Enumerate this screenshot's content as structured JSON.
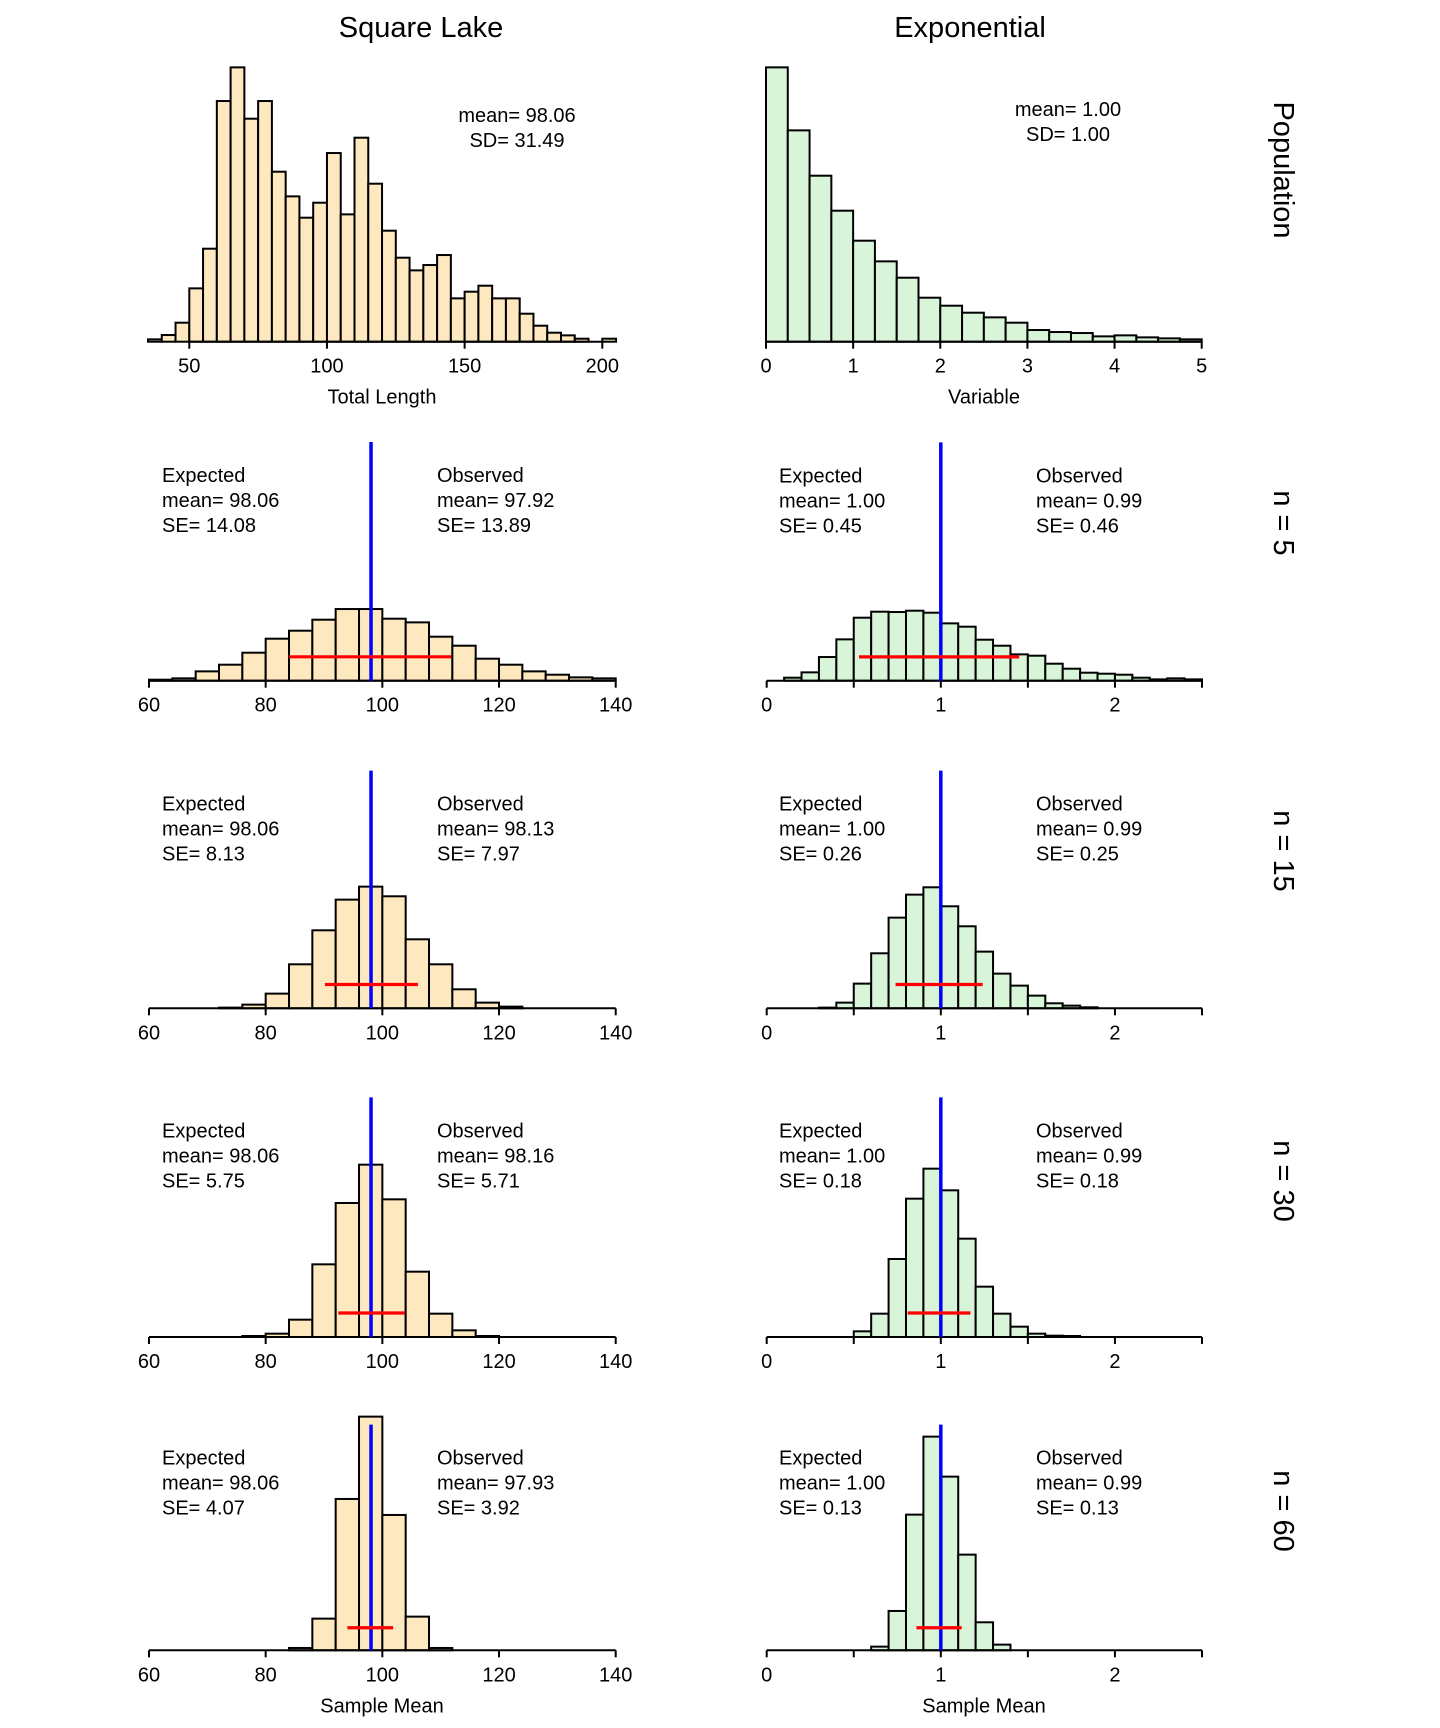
{
  "column_titles": [
    "Square Lake",
    "Exponential"
  ],
  "row_labels": [
    "Population",
    "n = 5",
    "n = 15",
    "n = 30",
    "n = 60"
  ],
  "colors": {
    "square_lake_fill": "#FEE8C0",
    "exponential_fill": "#D9F5D9",
    "expected_mean_line": "#0000FF",
    "observed_se_bar": "#FF0000",
    "outline": "#000000"
  },
  "chart_data": [
    {
      "type": "bar",
      "histogram": true,
      "column": "Square Lake",
      "row": "Population",
      "bins_start": 35,
      "bin_width": 5,
      "counts": [
        7,
        20,
        57,
        160,
        279,
        722,
        823,
        669,
        722,
        510,
        436,
        372,
        417,
        566,
        382,
        612,
        474,
        333,
        252,
        214,
        230,
        260,
        130,
        150,
        168,
        130,
        130,
        84,
        48,
        27,
        19,
        9,
        0,
        9
      ],
      "ylim": [
        0,
        823
      ],
      "xticks": [
        50,
        100,
        150,
        200
      ],
      "xtick_labels": [
        "50",
        "100",
        "150",
        "200"
      ],
      "xlabel": "Total Length",
      "stats_text": [
        "mean= 98.06",
        "SD= 31.49"
      ]
    },
    {
      "type": "bar",
      "histogram": true,
      "column": "Exponential",
      "row": "Population",
      "bins_start": 0,
      "bin_width": 0.25,
      "counts": [
        823,
        634,
        498,
        393,
        303,
        241,
        192,
        132,
        108,
        87,
        73,
        57,
        35,
        29,
        26,
        16,
        19,
        13,
        10,
        7
      ],
      "ylim": [
        0,
        823
      ],
      "xticks": [
        0,
        1,
        2,
        3,
        4,
        5
      ],
      "xtick_labels": [
        "0",
        "1",
        "2",
        "3",
        "4",
        "5"
      ],
      "xlabel": "Variable",
      "stats_text": [
        "mean= 1.00",
        "SD= 1.00"
      ]
    },
    {
      "type": "bar",
      "histogram": true,
      "column": "Square Lake",
      "row": "n = 5",
      "bins_start": 60,
      "bin_width": 4,
      "counts": [
        3,
        7,
        28,
        48,
        84,
        126,
        150,
        183,
        215,
        215,
        186,
        175,
        132,
        105,
        66,
        48,
        28,
        18,
        10,
        7
      ],
      "ylim": [
        0,
        716
      ],
      "xlim": [
        60,
        140
      ],
      "xticks": [
        60,
        80,
        100,
        120,
        140
      ],
      "xtick_labels": [
        "60",
        "80",
        "100",
        "120",
        "140"
      ],
      "xlabel": "",
      "expected": {
        "mean": 98.06,
        "se": 14.08
      },
      "observed": {
        "mean": 97.92,
        "se": 13.89
      },
      "expected_text": [
        "Expected",
        "mean= 98.06",
        "SE= 14.08"
      ],
      "observed_text": [
        "Observed",
        "mean= 97.92",
        "SE= 13.89"
      ]
    },
    {
      "type": "bar",
      "histogram": true,
      "column": "Exponential",
      "row": "n = 5",
      "bins_start": 0,
      "bin_width": 0.1,
      "counts": [
        0,
        9,
        25,
        71,
        124,
        189,
        207,
        206,
        210,
        204,
        172,
        162,
        123,
        105,
        79,
        75,
        51,
        36,
        24,
        21,
        18,
        9,
        4,
        7,
        4
      ],
      "ylim": [
        0,
        715
      ],
      "xlim": [
        0,
        2.5
      ],
      "xticks": [
        0,
        0.5,
        1,
        1.5,
        2,
        2.5
      ],
      "xtick_labels": [
        "0",
        "",
        "1",
        "",
        "2",
        ""
      ],
      "xlabel": "",
      "expected": {
        "mean": 1.0,
        "se": 0.45
      },
      "observed": {
        "mean": 0.99,
        "se": 0.46
      },
      "expected_text": [
        "Expected",
        "mean= 1.00",
        "SE= 0.45"
      ],
      "observed_text": [
        "Observed",
        "mean= 0.99",
        "SE= 0.46"
      ]
    },
    {
      "type": "bar",
      "histogram": true,
      "column": "Square Lake",
      "row": "n = 15",
      "bins_start": 72,
      "bin_width": 4,
      "counts": [
        2,
        11,
        44,
        132,
        234,
        326,
        365,
        336,
        207,
        132,
        57,
        17,
        5
      ],
      "ylim": [
        0,
        713
      ],
      "xlim": [
        60,
        140
      ],
      "xticks": [
        60,
        80,
        100,
        120,
        140
      ],
      "xtick_labels": [
        "60",
        "80",
        "100",
        "120",
        "140"
      ],
      "xlabel": "",
      "expected": {
        "mean": 98.06,
        "se": 8.13
      },
      "observed": {
        "mean": 98.13,
        "se": 7.97
      },
      "expected_text": [
        "Expected",
        "mean= 98.06",
        "SE= 8.13"
      ],
      "observed_text": [
        "Observed",
        "mean= 98.13",
        "SE= 7.97"
      ]
    },
    {
      "type": "bar",
      "histogram": true,
      "column": "Exponential",
      "row": "n = 15",
      "bins_start": 0.3,
      "bin_width": 0.1,
      "counts": [
        2,
        17,
        74,
        165,
        272,
        341,
        363,
        306,
        246,
        170,
        104,
        68,
        38,
        15,
        8,
        3
      ],
      "ylim": [
        0,
        713
      ],
      "xlim": [
        0,
        2.5
      ],
      "xticks": [
        0,
        0.5,
        1,
        1.5,
        2,
        2.5
      ],
      "xtick_labels": [
        "0",
        "",
        "1",
        "",
        "2",
        ""
      ],
      "xlabel": "",
      "expected": {
        "mean": 1.0,
        "se": 0.26
      },
      "observed": {
        "mean": 0.99,
        "se": 0.25
      },
      "expected_text": [
        "Expected",
        "mean= 1.00",
        "SE= 0.26"
      ],
      "observed_text": [
        "Observed",
        "mean= 0.99",
        "SE= 0.25"
      ]
    },
    {
      "type": "bar",
      "histogram": true,
      "column": "Square Lake",
      "row": "n = 30",
      "bins_start": 76,
      "bin_width": 4,
      "counts": [
        3,
        10,
        52,
        218,
        402,
        517,
        413,
        196,
        70,
        20,
        3
      ],
      "ylim": [
        0,
        719
      ],
      "xlim": [
        60,
        140
      ],
      "xticks": [
        60,
        80,
        100,
        120,
        140
      ],
      "xtick_labels": [
        "60",
        "80",
        "100",
        "120",
        "140"
      ],
      "xlabel": "",
      "expected": {
        "mean": 98.06,
        "se": 5.75
      },
      "observed": {
        "mean": 98.16,
        "se": 5.71
      },
      "expected_text": [
        "Expected",
        "mean= 98.06",
        "SE= 5.75"
      ],
      "observed_text": [
        "Observed",
        "mean= 98.16",
        "SE= 5.71"
      ]
    },
    {
      "type": "bar",
      "histogram": true,
      "column": "Exponential",
      "row": "n = 30",
      "bins_start": 0.5,
      "bin_width": 0.1,
      "counts": [
        17,
        70,
        234,
        415,
        505,
        440,
        295,
        151,
        70,
        31,
        10,
        4,
        3
      ],
      "ylim": [
        0,
        719
      ],
      "xlim": [
        0,
        2.5
      ],
      "xticks": [
        0,
        0.5,
        1,
        1.5,
        2,
        2.5
      ],
      "xtick_labels": [
        "0",
        "",
        "1",
        "",
        "2",
        ""
      ],
      "xlabel": "",
      "expected": {
        "mean": 1.0,
        "se": 0.18
      },
      "observed": {
        "mean": 0.99,
        "se": 0.18
      },
      "expected_text": [
        "Expected",
        "mean= 1.00",
        "SE= 0.18"
      ],
      "observed_text": [
        "Observed",
        "mean= 0.99",
        "SE= 0.18"
      ]
    },
    {
      "type": "bar",
      "histogram": true,
      "column": "Square Lake",
      "row": "n = 60",
      "bins_start": 84,
      "bin_width": 4,
      "counts": [
        7,
        95,
        454,
        701,
        406,
        101,
        7
      ],
      "ylim": [
        0,
        677
      ],
      "xlim": [
        60,
        140
      ],
      "xticks": [
        60,
        80,
        100,
        120,
        140
      ],
      "xtick_labels": [
        "60",
        "80",
        "100",
        "120",
        "140"
      ],
      "xlabel": "Sample Mean",
      "expected": {
        "mean": 98.06,
        "se": 4.07
      },
      "observed": {
        "mean": 97.93,
        "se": 3.92
      },
      "expected_text": [
        "Expected",
        "mean= 98.06",
        "SE= 4.07"
      ],
      "observed_text": [
        "Observed",
        "mean= 97.93",
        "SE= 3.92"
      ]
    },
    {
      "type": "bar",
      "histogram": true,
      "column": "Exponential",
      "row": "n = 60",
      "bins_start": 0.6,
      "bin_width": 0.1,
      "counts": [
        11,
        118,
        407,
        641,
        521,
        287,
        84,
        17
      ],
      "ylim": [
        0,
        677
      ],
      "xlim": [
        0,
        2.5
      ],
      "xticks": [
        0,
        0.5,
        1,
        1.5,
        2,
        2.5
      ],
      "xtick_labels": [
        "0",
        "",
        "1",
        "",
        "2",
        ""
      ],
      "xlabel": "Sample Mean",
      "expected": {
        "mean": 1.0,
        "se": 0.13
      },
      "observed": {
        "mean": 0.99,
        "se": 0.13
      },
      "expected_text": [
        "Expected",
        "mean= 1.00",
        "SE= 0.13"
      ],
      "observed_text": [
        "Observed",
        "mean= 0.99",
        "SE= 0.13"
      ]
    }
  ]
}
